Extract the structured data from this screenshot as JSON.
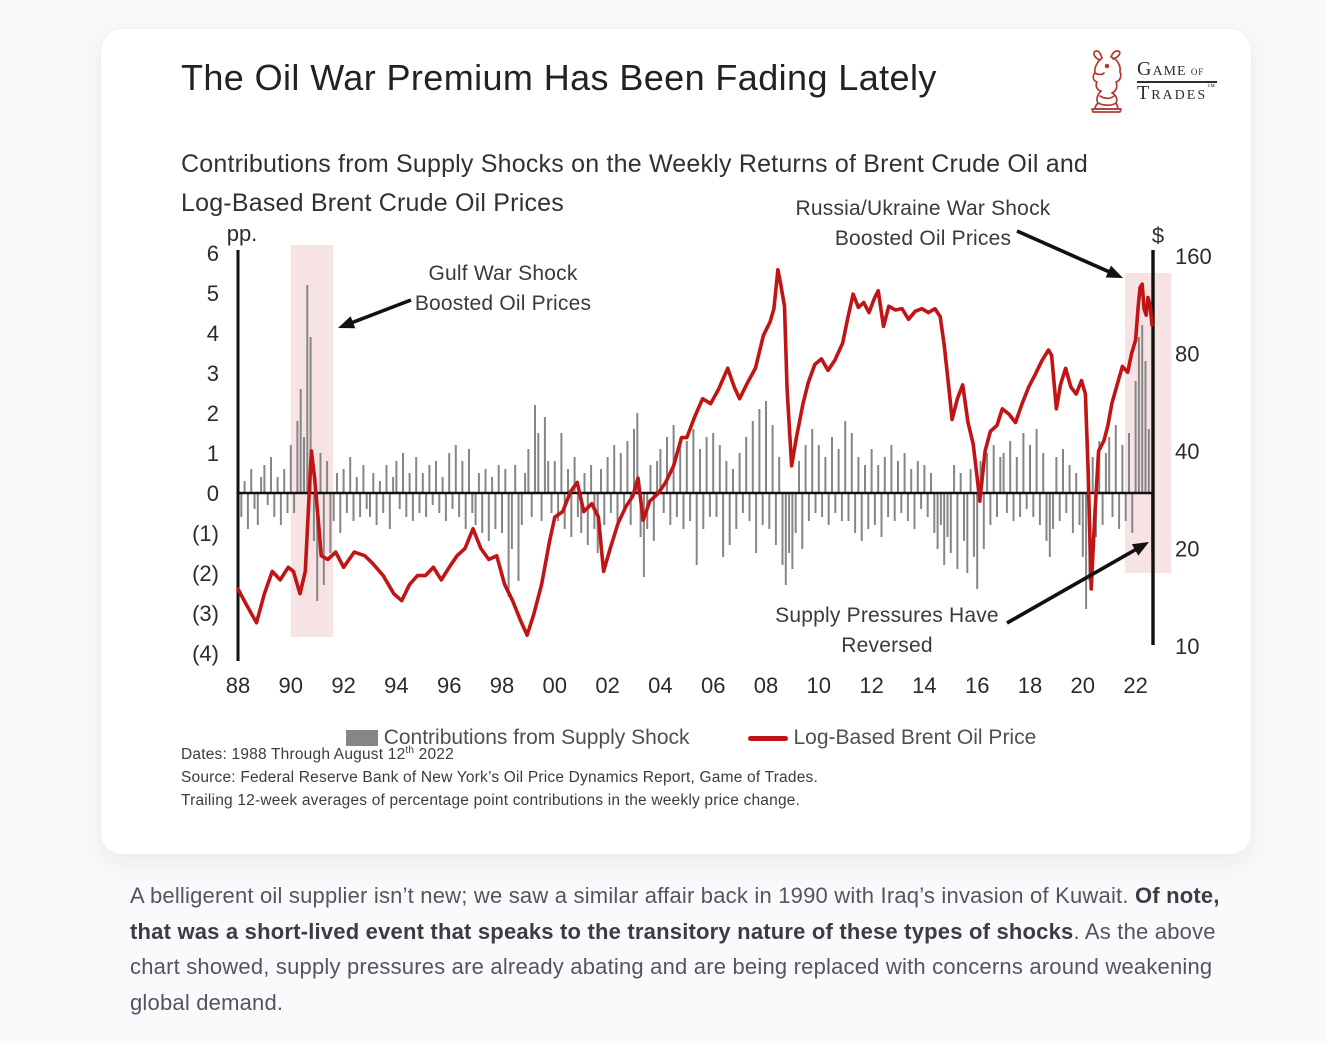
{
  "header": {
    "title": "The Oil War Premium Has Been Fading Lately",
    "logo": {
      "word1": "Game",
      "word1_small": " of",
      "word2": "Trades",
      "trademark": "™"
    }
  },
  "chart_data": {
    "type": "combo",
    "title": "The Oil War Premium Has Been Fading Lately",
    "subtitle_lines": [
      "Contributions from Supply Shocks on the Weekly Returns of Brent Crude Oil and",
      "Log-Based Brent Crude Oil Prices"
    ],
    "left_axis": {
      "unit": "pp.",
      "range": [
        -4,
        6
      ],
      "ticks": [
        "6",
        "5",
        "4",
        "3",
        "2",
        "1",
        "0",
        "(1)",
        "(2)",
        "(3)",
        "(4)"
      ],
      "tick_values": [
        6,
        5,
        4,
        3,
        2,
        1,
        0,
        -1,
        -2,
        -3,
        -4
      ]
    },
    "right_axis": {
      "unit": "$",
      "scale": "log2",
      "ticks": [
        160,
        80,
        40,
        20,
        10
      ]
    },
    "x_axis": {
      "range": [
        1988,
        2022.62
      ],
      "tick_labels": [
        "88",
        "90",
        "92",
        "94",
        "96",
        "98",
        "00",
        "02",
        "04",
        "06",
        "08",
        "10",
        "12",
        "14",
        "16",
        "18",
        "20",
        "22"
      ],
      "tick_years": [
        1988,
        1990,
        1992,
        1994,
        1996,
        1998,
        2000,
        2002,
        2004,
        2006,
        2008,
        2010,
        2012,
        2014,
        2016,
        2018,
        2020,
        2022
      ]
    },
    "legend": [
      {
        "label": "Contributions from Supply Shock",
        "swatch": "bar",
        "color": "#868686"
      },
      {
        "label": "Log-Based Brent Oil Price",
        "swatch": "line",
        "color": "#c11414"
      }
    ],
    "highlight_bands": [
      {
        "label": "Gulf War shock",
        "x": [
          1990.0,
          1991.6
        ],
        "pp": [
          6.2,
          -3.6
        ],
        "color": "#f7e3e4"
      },
      {
        "label": "Russia/Ukraine war shock",
        "x": [
          2021.6,
          2023.35
        ],
        "pp": [
          5.5,
          -2.0
        ],
        "color": "#f7e3e4"
      }
    ],
    "annotations": {
      "gulf_war": {
        "lines": [
          "Gulf War Shock",
          "Boosted Oil Prices"
        ]
      },
      "russia_ukraine": {
        "lines": [
          "Russia/Ukraine War Shock",
          "Boosted Oil Prices"
        ]
      },
      "supply_reversed": {
        "lines": [
          "Supply Pressures Have",
          "Reversed"
        ]
      }
    },
    "series": [
      {
        "name": "Contributions from Supply Shock",
        "type": "bar",
        "axis": "left",
        "unit": "pp",
        "color": "#868686",
        "x_start": 1988.0,
        "x_step": 0.125,
        "values": [
          0.5,
          -0.6,
          0.3,
          -0.9,
          0.6,
          -0.4,
          -0.8,
          0.4,
          0.7,
          -0.3,
          0.9,
          -0.6,
          0.4,
          -0.8,
          0.6,
          -0.5,
          1.2,
          -0.5,
          1.8,
          2.6,
          1.4,
          5.2,
          3.9,
          -1.2,
          -2.7,
          1.0,
          -2.3,
          0.8,
          -1.5,
          -0.7,
          0.5,
          -1.0,
          0.6,
          -0.5,
          0.9,
          -0.7,
          0.4,
          -0.6,
          0.7,
          -0.4,
          -0.6,
          0.5,
          -0.8,
          0.3,
          -0.5,
          0.7,
          -0.9,
          0.4,
          0.8,
          -0.4,
          1.0,
          -0.6,
          0.5,
          -0.7,
          0.9,
          -0.5,
          0.5,
          -0.6,
          0.7,
          -0.3,
          0.8,
          -0.5,
          0.4,
          -0.7,
          1.0,
          -0.4,
          1.2,
          -0.6,
          0.8,
          -0.9,
          1.1,
          -0.5,
          -0.8,
          0.5,
          -1.0,
          0.6,
          -1.2,
          0.4,
          -0.9,
          0.7,
          -1.0,
          0.6,
          -2.6,
          -1.4,
          0.7,
          -2.2,
          -0.8,
          0.5,
          1.1,
          -0.6,
          2.2,
          1.5,
          -0.7,
          1.9,
          0.8,
          -0.5,
          0.8,
          -0.7,
          1.5,
          -0.9,
          0.6,
          -1.1,
          0.9,
          -0.6,
          -1.0,
          0.5,
          -1.3,
          0.7,
          -0.9,
          -1.5,
          0.6,
          -0.8,
          0.9,
          -0.5,
          1.2,
          -0.7,
          1.0,
          -0.4,
          1.3,
          -0.8,
          1.6,
          2.0,
          -1.1,
          -2.1,
          -0.9,
          0.7,
          -1.2,
          0.8,
          1.1,
          -0.5,
          1.4,
          -0.8,
          1.7,
          -0.6,
          1.2,
          -0.9,
          1.3,
          -0.7,
          1.6,
          -1.8,
          1.1,
          -0.9,
          1.4,
          -0.6,
          1.5,
          -0.6,
          1.2,
          -1.6,
          0.8,
          -1.3,
          0.6,
          -0.9,
          1.0,
          -0.5,
          1.4,
          -0.7,
          1.8,
          -1.5,
          2.1,
          -0.8,
          2.3,
          -0.9,
          1.7,
          -1.3,
          0.9,
          -1.8,
          -2.3,
          -1.5,
          -1.9,
          -1.0,
          0.8,
          -1.4,
          1.2,
          -0.7,
          1.6,
          -0.5,
          1.2,
          -0.6,
          0.9,
          -0.8,
          1.4,
          -0.5,
          1.1,
          -0.7,
          1.8,
          -0.7,
          1.5,
          -1.0,
          0.9,
          -1.2,
          0.7,
          -0.9,
          1.1,
          -0.8,
          0.7,
          -1.1,
          0.9,
          -0.6,
          1.2,
          -0.7,
          0.8,
          -0.5,
          1.0,
          -0.7,
          0.6,
          -0.9,
          0.8,
          -0.4,
          0.7,
          -0.6,
          0.5,
          -1.0,
          -1.4,
          -0.8,
          -1.8,
          -1.1,
          -1.5,
          0.7,
          -1.9,
          0.5,
          -1.2,
          -2.0,
          0.6,
          -1.6,
          -2.4,
          0.8,
          -1.4,
          1.0,
          -0.8,
          1.2,
          -0.6,
          0.9,
          1.0,
          -0.5,
          1.3,
          -0.7,
          0.9,
          -0.6,
          1.5,
          -0.4,
          1.2,
          -0.6,
          1.6,
          -0.8,
          1.0,
          -1.2,
          -1.6,
          -0.9,
          0.9,
          -0.7,
          1.1,
          -0.5,
          0.7,
          -1.0,
          0.5,
          -0.8,
          -1.6,
          -2.9,
          -2.2,
          0.9,
          -1.1,
          1.3,
          -0.8,
          1.0,
          1.4,
          -0.6,
          1.7,
          -0.9,
          1.2,
          -0.7,
          1.5,
          -1.0,
          2.8,
          3.9,
          4.2,
          3.3,
          1.6,
          -1.5
        ]
      },
      {
        "name": "Log-Based Brent Oil Price",
        "type": "line",
        "axis": "right",
        "unit": "USD",
        "color": "#c11414",
        "points": [
          [
            1988.0,
            15
          ],
          [
            1988.3,
            13.5
          ],
          [
            1988.7,
            11.8
          ],
          [
            1989.0,
            14.5
          ],
          [
            1989.3,
            17
          ],
          [
            1989.6,
            16
          ],
          [
            1989.9,
            17.5
          ],
          [
            1990.1,
            17
          ],
          [
            1990.35,
            14.5
          ],
          [
            1990.55,
            17
          ],
          [
            1990.7,
            30
          ],
          [
            1990.78,
            40
          ],
          [
            1990.9,
            33
          ],
          [
            1991.05,
            24
          ],
          [
            1991.15,
            19
          ],
          [
            1991.4,
            18.5
          ],
          [
            1991.7,
            19.5
          ],
          [
            1992.0,
            17.5
          ],
          [
            1992.4,
            19.5
          ],
          [
            1992.8,
            19
          ],
          [
            1993.1,
            18
          ],
          [
            1993.5,
            16.5
          ],
          [
            1993.9,
            14.5
          ],
          [
            1994.2,
            13.8
          ],
          [
            1994.5,
            15.5
          ],
          [
            1994.8,
            16.5
          ],
          [
            1995.1,
            16.5
          ],
          [
            1995.4,
            17.5
          ],
          [
            1995.7,
            16
          ],
          [
            1996.0,
            17.5
          ],
          [
            1996.3,
            19
          ],
          [
            1996.6,
            20
          ],
          [
            1996.9,
            23
          ],
          [
            1997.2,
            20
          ],
          [
            1997.5,
            18.5
          ],
          [
            1997.8,
            19
          ],
          [
            1998.1,
            15.5
          ],
          [
            1998.4,
            13.8
          ],
          [
            1998.7,
            12
          ],
          [
            1998.95,
            10.8
          ],
          [
            1999.2,
            12.5
          ],
          [
            1999.5,
            15.5
          ],
          [
            1999.8,
            21
          ],
          [
            2000.0,
            25
          ],
          [
            2000.3,
            26
          ],
          [
            2000.6,
            30
          ],
          [
            2000.85,
            32
          ],
          [
            2001.1,
            26
          ],
          [
            2001.4,
            27.5
          ],
          [
            2001.65,
            25
          ],
          [
            2001.85,
            17
          ],
          [
            2002.1,
            20
          ],
          [
            2002.4,
            24
          ],
          [
            2002.7,
            27
          ],
          [
            2002.95,
            29
          ],
          [
            2003.15,
            33
          ],
          [
            2003.35,
            24.5
          ],
          [
            2003.6,
            28
          ],
          [
            2003.9,
            29.5
          ],
          [
            2004.2,
            32
          ],
          [
            2004.5,
            36
          ],
          [
            2004.8,
            44
          ],
          [
            2005.0,
            44
          ],
          [
            2005.3,
            51
          ],
          [
            2005.6,
            58
          ],
          [
            2005.9,
            56
          ],
          [
            2006.2,
            62
          ],
          [
            2006.55,
            72
          ],
          [
            2006.8,
            63
          ],
          [
            2007.0,
            58
          ],
          [
            2007.3,
            65
          ],
          [
            2007.6,
            72
          ],
          [
            2007.9,
            91
          ],
          [
            2008.15,
            100
          ],
          [
            2008.3,
            110
          ],
          [
            2008.45,
            145
          ],
          [
            2008.55,
            132
          ],
          [
            2008.7,
            112
          ],
          [
            2008.8,
            62
          ],
          [
            2008.97,
            36
          ],
          [
            2009.15,
            44
          ],
          [
            2009.4,
            56
          ],
          [
            2009.6,
            65
          ],
          [
            2009.85,
            74
          ],
          [
            2010.1,
            77
          ],
          [
            2010.35,
            71
          ],
          [
            2010.6,
            76
          ],
          [
            2010.9,
            86
          ],
          [
            2011.1,
            103
          ],
          [
            2011.3,
            122
          ],
          [
            2011.5,
            111
          ],
          [
            2011.7,
            115
          ],
          [
            2011.9,
            107
          ],
          [
            2012.1,
            118
          ],
          [
            2012.25,
            125
          ],
          [
            2012.45,
            97
          ],
          [
            2012.65,
            112
          ],
          [
            2012.9,
            109
          ],
          [
            2013.15,
            110
          ],
          [
            2013.4,
            102
          ],
          [
            2013.65,
            108
          ],
          [
            2013.9,
            110
          ],
          [
            2014.15,
            107
          ],
          [
            2014.4,
            110
          ],
          [
            2014.6,
            104
          ],
          [
            2014.75,
            85
          ],
          [
            2014.95,
            60
          ],
          [
            2015.05,
            50
          ],
          [
            2015.25,
            58
          ],
          [
            2015.45,
            64
          ],
          [
            2015.65,
            49
          ],
          [
            2015.85,
            42
          ],
          [
            2016.0,
            33
          ],
          [
            2016.1,
            28
          ],
          [
            2016.3,
            40
          ],
          [
            2016.5,
            46
          ],
          [
            2016.75,
            48
          ],
          [
            2016.95,
            54
          ],
          [
            2017.2,
            52
          ],
          [
            2017.45,
            49
          ],
          [
            2017.7,
            56
          ],
          [
            2017.95,
            63
          ],
          [
            2018.2,
            69
          ],
          [
            2018.45,
            76
          ],
          [
            2018.7,
            82
          ],
          [
            2018.82,
            79
          ],
          [
            2019.0,
            54
          ],
          [
            2019.15,
            64
          ],
          [
            2019.35,
            72
          ],
          [
            2019.55,
            63
          ],
          [
            2019.75,
            60
          ],
          [
            2019.95,
            66
          ],
          [
            2020.1,
            60
          ],
          [
            2020.2,
            35
          ],
          [
            2020.32,
            15
          ],
          [
            2020.45,
            25
          ],
          [
            2020.6,
            40
          ],
          [
            2020.8,
            43
          ],
          [
            2020.95,
            48
          ],
          [
            2021.1,
            56
          ],
          [
            2021.3,
            64
          ],
          [
            2021.5,
            73
          ],
          [
            2021.7,
            70
          ],
          [
            2021.85,
            80
          ],
          [
            2022.0,
            88
          ],
          [
            2022.1,
            112
          ],
          [
            2022.17,
            128
          ],
          [
            2022.25,
            131
          ],
          [
            2022.32,
            110
          ],
          [
            2022.4,
            105
          ],
          [
            2022.47,
            119
          ],
          [
            2022.55,
            113
          ],
          [
            2022.62,
            98
          ]
        ]
      }
    ],
    "notes": {
      "dates_pre": "Dates: 1988 Through August 12",
      "dates_sup": "th",
      "dates_post": " 2022",
      "source": "Source: Federal Reserve Bank of New York’s Oil Price Dynamics Report, Game of Trades.",
      "trailing": "Trailing 12-week averages of percentage point contributions in the weekly price change."
    }
  },
  "footer": {
    "seg1": "A belligerent oil supplier isn’t new; we saw a similar affair back in 1990 with Iraq’s invasion of Kuwait. ",
    "seg2": "Of note, that was a short-lived event that speaks to the transitory nature of these types of shocks",
    "seg3": ". As the above chart showed, supply pressures are already abating and are being replaced with concerns around weakening global demand."
  }
}
